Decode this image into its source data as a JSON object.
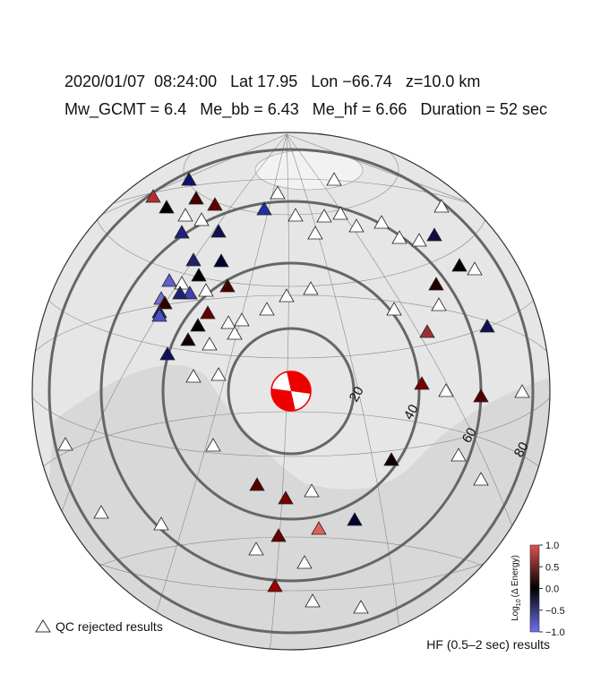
{
  "header": {
    "line1": "2020/01/07  08:24:00   Lat 17.95   Lon −66.74   z=10.0 km",
    "line2": "Mw_GCMT = 6.4   Me_bb = 6.43   Me_hf = 6.66   Duration = 52 sec"
  },
  "distance_rings": {
    "labels": [
      20,
      40,
      60,
      80
    ]
  },
  "colorbar": {
    "label_main": "Log",
    "label_sub": "10",
    "label_rest": "(Δ Energy)",
    "ticks": [
      {
        "value": 1,
        "label": "1.0"
      },
      {
        "value": 0.5,
        "label": "0.5"
      },
      {
        "value": 0,
        "label": "0.0"
      },
      {
        "value": -0.5,
        "label": "−0.5"
      },
      {
        "value": -1,
        "label": "−1.0"
      }
    ],
    "lim": [
      -1,
      1
    ]
  },
  "legend": {
    "qc": "QC rejected results",
    "hf": "HF (0.5–2 sec) results"
  }
}
